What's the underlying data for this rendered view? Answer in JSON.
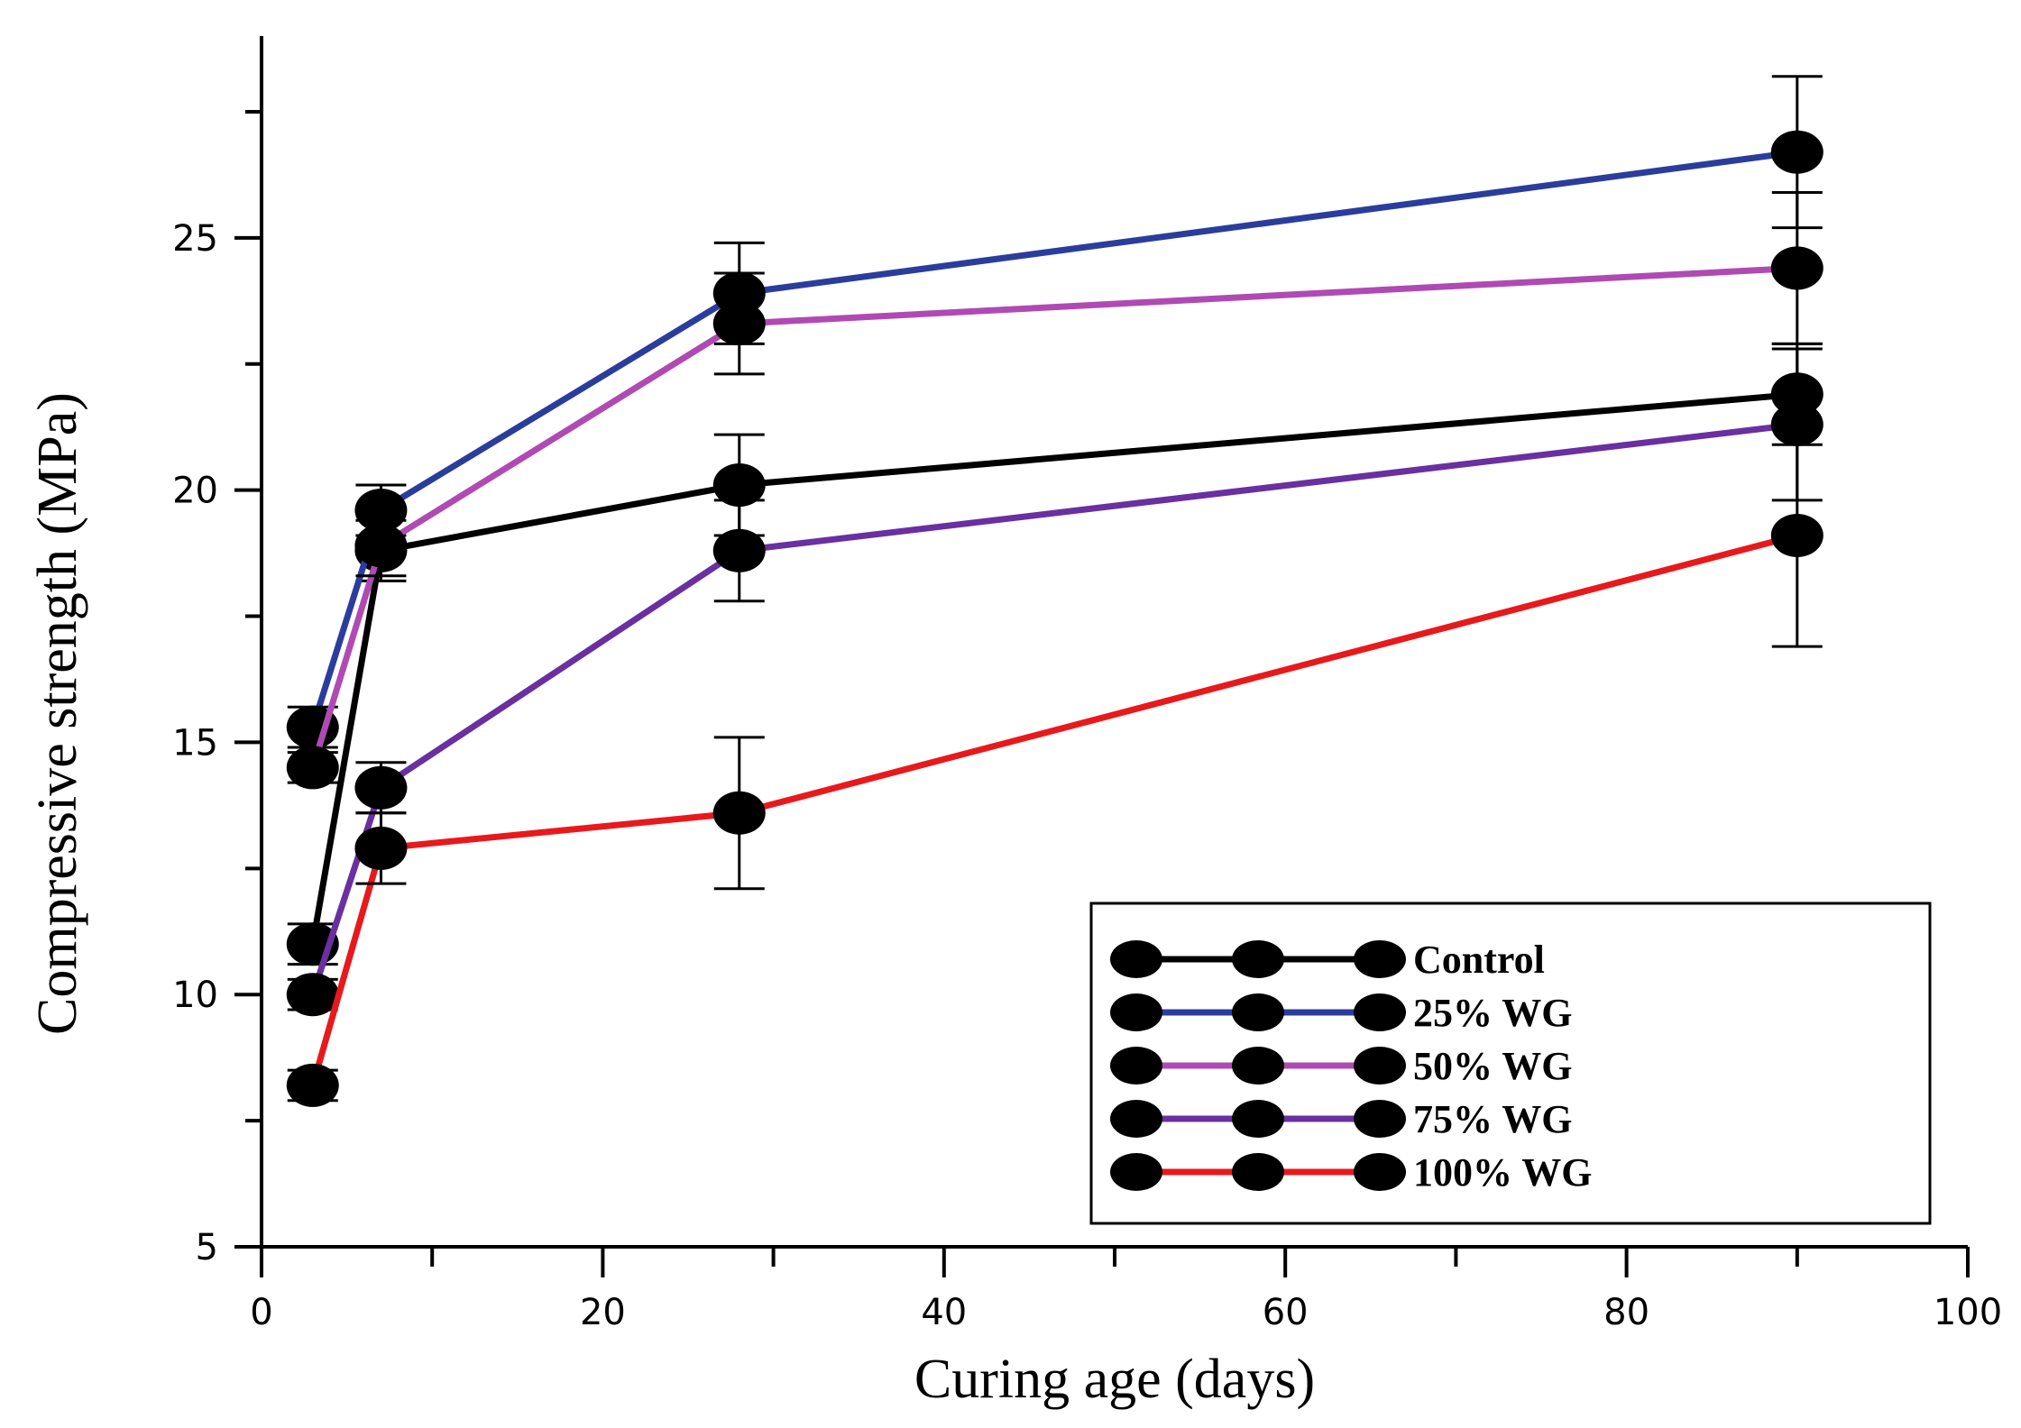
{
  "chart_data": {
    "type": "line",
    "title": "",
    "xlabel": "Curing age (days)",
    "ylabel": "Compressive strength (MPa)",
    "xlim": [
      0,
      100
    ],
    "ylim": [
      5,
      29
    ],
    "xticks": [
      0,
      20,
      40,
      60,
      80,
      100
    ],
    "yticks": [
      5,
      10,
      15,
      20,
      25
    ],
    "grid": false,
    "legend_position": "bottom-right",
    "x": [
      3,
      7,
      28,
      90
    ],
    "series": [
      {
        "name": "Control",
        "color": "#000000",
        "values": [
          11.0,
          18.8,
          20.1,
          21.9
        ],
        "errors": [
          0.4,
          0.6,
          1.0,
          1.0
        ]
      },
      {
        "name": "25% WG",
        "color": "#2b3d9c",
        "values": [
          15.3,
          19.6,
          23.9,
          26.7
        ],
        "errors": [
          0.4,
          0.5,
          1.0,
          1.5
        ]
      },
      {
        "name": "50% WG",
        "color": "#b04ab3",
        "values": [
          14.5,
          18.9,
          23.3,
          24.4
        ],
        "errors": [
          0.3,
          0.6,
          1.0,
          1.5
        ]
      },
      {
        "name": "75% WG",
        "color": "#6a2fa0",
        "values": [
          10.0,
          14.1,
          18.8,
          21.3
        ],
        "errors": [
          0.3,
          0.5,
          1.0,
          1.5
        ]
      },
      {
        "name": "100% WG",
        "color": "#e8191c",
        "values": [
          8.2,
          12.9,
          13.6,
          19.1
        ],
        "errors": [
          0.3,
          0.7,
          1.5,
          2.2
        ]
      }
    ]
  }
}
